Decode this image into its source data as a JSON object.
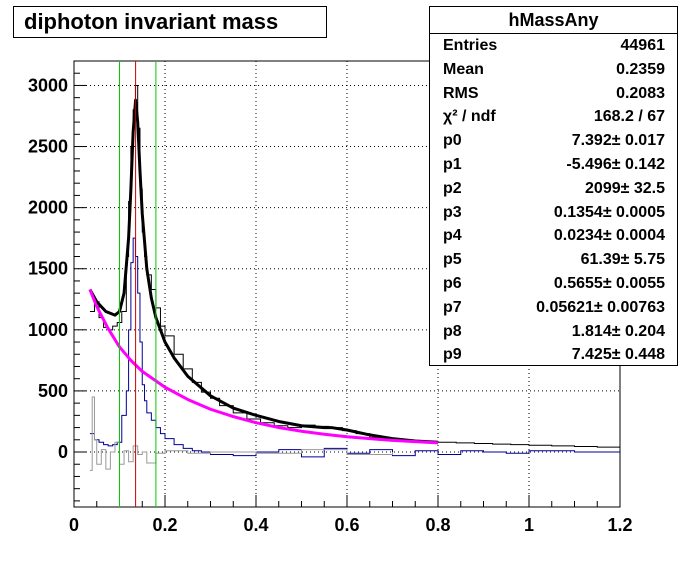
{
  "chart_data": {
    "type": "line",
    "title": "diphoton invariant mass",
    "xlabel": "",
    "ylabel": "",
    "xlim": [
      0,
      1.2
    ],
    "ylim": [
      -450,
      3200
    ],
    "x_ticks": [
      "0",
      "0.2",
      "0.4",
      "0.6",
      "0.8",
      "1",
      "1.2"
    ],
    "y_ticks": [
      "0",
      "500",
      "1000",
      "1500",
      "2000",
      "2500",
      "3000"
    ],
    "grid": true,
    "bin_width": 0.005,
    "stats": {
      "name": "hMassAny",
      "rows": [
        {
          "label": "Entries",
          "value": "44961"
        },
        {
          "label": "Mean",
          "value": "0.2359"
        },
        {
          "label": "RMS",
          "value": "0.2083"
        },
        {
          "label": "χ² / ndf",
          "value": "168.2 / 67"
        },
        {
          "label": "p0",
          "value": "7.392± 0.017"
        },
        {
          "label": "p1",
          "value": "-5.496± 0.142"
        },
        {
          "label": "p2",
          "value": "2099± 32.5"
        },
        {
          "label": "p3",
          "value": "0.1354± 0.0005"
        },
        {
          "label": "p4",
          "value": "0.0234± 0.0004"
        },
        {
          "label": "p5",
          "value": "61.39± 5.75"
        },
        {
          "label": "p6",
          "value": "0.5655± 0.0055"
        },
        {
          "label": "p7",
          "value": "0.05621± 0.00763"
        },
        {
          "label": "p8",
          "value": "1.814± 0.204"
        },
        {
          "label": "p9",
          "value": "7.425± 0.448"
        }
      ]
    },
    "vertical_lines": [
      {
        "x": 0.1,
        "color": "#00cc00"
      },
      {
        "x": 0.1354,
        "color": "#cc0000"
      },
      {
        "x": 0.18,
        "color": "#00cc00"
      }
    ],
    "series": [
      {
        "kind": "hist",
        "color": "#000000",
        "x": [
          0.035,
          0.045,
          0.055,
          0.065,
          0.075,
          0.085,
          0.095,
          0.105,
          0.115,
          0.12,
          0.125,
          0.13,
          0.135,
          0.14,
          0.145,
          0.15,
          0.155,
          0.16,
          0.17,
          0.18,
          0.19,
          0.2,
          0.22,
          0.24,
          0.26,
          0.28,
          0.3,
          0.32,
          0.35,
          0.38,
          0.41,
          0.44,
          0.47,
          0.5,
          0.53,
          0.56,
          0.59,
          0.62,
          0.65,
          0.68,
          0.71,
          0.74,
          0.77,
          0.8,
          0.84,
          0.88,
          0.92,
          0.96,
          1.0,
          1.05,
          1.1,
          1.15,
          1.2
        ],
        "y": [
          1150,
          1230,
          1100,
          1020,
          1000,
          1030,
          1060,
          1150,
          1600,
          2050,
          2500,
          2800,
          3000,
          2650,
          2150,
          1800,
          1600,
          1450,
          1330,
          1180,
          1030,
          950,
          800,
          680,
          570,
          490,
          440,
          380,
          320,
          270,
          240,
          215,
          200,
          220,
          210,
          200,
          175,
          150,
          120,
          110,
          100,
          90,
          85,
          80,
          75,
          70,
          65,
          60,
          55,
          50,
          45,
          40,
          40
        ]
      },
      {
        "kind": "hist",
        "color": "#000099",
        "x": [
          0.035,
          0.045,
          0.055,
          0.065,
          0.075,
          0.085,
          0.095,
          0.105,
          0.115,
          0.12,
          0.125,
          0.13,
          0.135,
          0.14,
          0.145,
          0.15,
          0.155,
          0.16,
          0.17,
          0.18,
          0.19,
          0.2,
          0.22,
          0.24,
          0.26,
          0.28,
          0.3,
          0.35,
          0.4,
          0.45,
          0.5,
          0.55,
          0.6,
          0.65,
          0.7,
          0.75,
          0.8,
          0.85,
          0.9,
          0.95,
          1.0,
          1.1,
          1.2
        ],
        "y": [
          150,
          100,
          80,
          60,
          50,
          60,
          80,
          300,
          500,
          1000,
          1550,
          1750,
          1600,
          1300,
          900,
          550,
          420,
          320,
          260,
          200,
          150,
          110,
          60,
          30,
          10,
          0,
          -20,
          -30,
          0,
          20,
          -40,
          30,
          -10,
          20,
          -30,
          10,
          -20,
          10,
          0,
          -10,
          10,
          0,
          0
        ]
      },
      {
        "kind": "hist",
        "color": "#999999",
        "x": [
          0.035,
          0.04,
          0.045,
          0.05,
          0.06,
          0.07,
          0.08,
          0.09,
          0.1,
          0.11,
          0.12,
          0.13,
          0.14,
          0.15,
          0.16,
          0.18,
          0.2,
          0.25,
          0.3,
          0.4,
          0.5,
          0.6,
          0.7
        ],
        "y": [
          -150,
          450,
          100,
          -100,
          20,
          -140,
          0,
          80,
          -100,
          10,
          -80,
          50,
          -20,
          0,
          -90,
          -10,
          10,
          -10,
          0,
          -10,
          20,
          -20,
          0
        ]
      },
      {
        "kind": "fit",
        "color": "#000000",
        "x": [
          0.035,
          0.05,
          0.07,
          0.09,
          0.1,
          0.11,
          0.12,
          0.125,
          0.13,
          0.1354,
          0.14,
          0.145,
          0.15,
          0.16,
          0.17,
          0.18,
          0.2,
          0.22,
          0.25,
          0.3,
          0.35,
          0.4,
          0.45,
          0.5,
          0.55,
          0.5655,
          0.6,
          0.65,
          0.7,
          0.75,
          0.8
        ],
        "y": [
          1330,
          1230,
          1150,
          1120,
          1150,
          1300,
          1750,
          2150,
          2620,
          2880,
          2700,
          2300,
          1950,
          1500,
          1260,
          1100,
          900,
          770,
          620,
          460,
          360,
          300,
          250,
          215,
          200,
          200,
          180,
          140,
          110,
          90,
          80
        ]
      },
      {
        "kind": "fit",
        "color": "#ff00ff",
        "x": [
          0.035,
          0.05,
          0.075,
          0.1,
          0.125,
          0.15,
          0.2,
          0.25,
          0.3,
          0.35,
          0.4,
          0.45,
          0.5,
          0.55,
          0.6,
          0.65,
          0.7,
          0.75,
          0.8
        ],
        "y": [
          1330,
          1190,
          1010,
          860,
          750,
          660,
          530,
          430,
          350,
          290,
          240,
          200,
          170,
          145,
          125,
          110,
          95,
          85,
          75
        ]
      }
    ]
  }
}
